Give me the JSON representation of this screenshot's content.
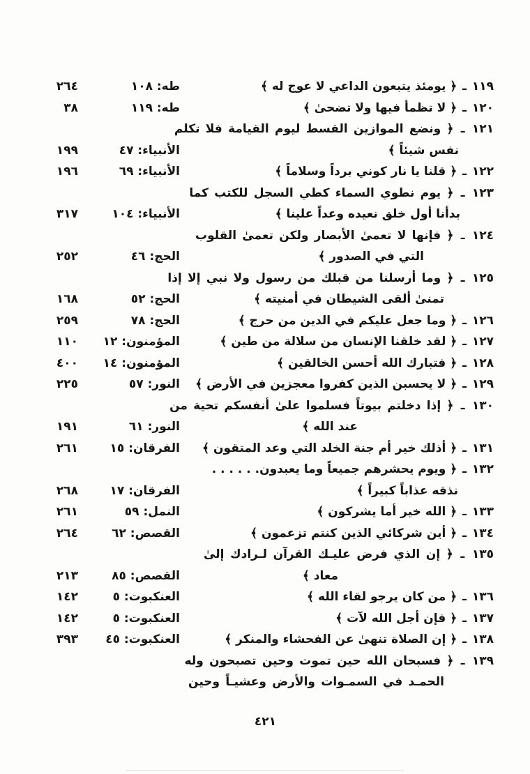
{
  "separator": "ـ",
  "footer": {
    "page_number": "٤٢١"
  },
  "entries": [
    {
      "num": "١١٩",
      "ref": "طه: ١٠٨",
      "page": "٢٦٤",
      "lines": [
        {
          "text": "﴿ يومئذ يتبعون الداعي لا عوج له ﴾"
        }
      ]
    },
    {
      "num": "١٢٠",
      "ref": "طه: ١١٩",
      "page": "٣٨",
      "lines": [
        {
          "text": "﴿ لا تظمأ فيها ولا تضحىٰ ﴾"
        }
      ]
    },
    {
      "num": "١٢١",
      "ref": "الأنبياء: ٤٧",
      "page": "١٩٩",
      "lines": [
        {
          "text": "﴿ ونضع الموازين القسط ليوم القيامة فلا تكلم",
          "jw": 416
        },
        {
          "text": "نفس شيئاً ﴾",
          "indent": 50
        }
      ]
    },
    {
      "num": "١٢٢",
      "ref": "الأنبياء: ٦٩",
      "page": "١٩٦",
      "lines": [
        {
          "text": "﴿ قلنا يا نار كوني برداً وسلاماً ﴾"
        }
      ]
    },
    {
      "num": "١٢٣",
      "ref": "الأنبياء: ١٠٤",
      "page": "٣١٧",
      "lines": [
        {
          "text": "﴿ يوم نطوي السماء كطي السجل للكتب كما",
          "jw": 416
        },
        {
          "text": "بدأنا أول خلق نعيده وعداً علينا ﴾",
          "indent": 48
        }
      ]
    },
    {
      "num": "١٢٤",
      "ref": "الحج: ٤٦",
      "page": "٢٥٢",
      "lines": [
        {
          "text": "﴿ فإنها لا تعمىٰ الأبصار ولكن تعمىٰ القلوب",
          "jw": 416
        },
        {
          "text": "التي في الصدور ﴾",
          "indent": 100
        }
      ]
    },
    {
      "num": "١٢٥",
      "ref": "الحج: ٥٢",
      "page": "١٦٨",
      "lines": [
        {
          "text": "﴿ وما أرسلنا من قبلك من رسول ولا نبي إلا إذا",
          "jw": 416
        },
        {
          "text": "تمنىٰ ألقى الشيطان في أمنيته ﴾",
          "indent": 71
        }
      ]
    },
    {
      "num": "١٢٦",
      "ref": "الحج: ٧٨",
      "page": "٢٥٩",
      "lines": [
        {
          "text": "﴿ وما جعل عليكم في الدين من حرج ﴾"
        }
      ]
    },
    {
      "num": "١٢٧",
      "ref": "المؤمنون: ١٢",
      "page": "١١٠",
      "lines": [
        {
          "text": "﴿ لقد خلقنا الإنسان من سلالة من طين ﴾"
        }
      ]
    },
    {
      "num": "١٢٨",
      "ref": "المؤمنون: ١٤",
      "page": "٤٠٠",
      "lines": [
        {
          "text": "﴿ فتبارك الله أحسن الخالقين ﴾"
        }
      ]
    },
    {
      "num": "١٢٩",
      "ref": "النور: ٥٧",
      "page": "٢٢٥",
      "lines": [
        {
          "text": "﴿ لا يحسبن الذين كفروا معجزين في الأرض ﴾"
        }
      ]
    },
    {
      "num": "١٣٠",
      "ref": "النور: ٦١",
      "page": "١٩١",
      "lines": [
        {
          "text": "﴿ إذا دخلتم بيوتاً فسلموا علىٰ أنفسكم تحية من",
          "jw": 416
        },
        {
          "text": "عند الله ﴾",
          "indent": 195
        }
      ]
    },
    {
      "num": "١٣١",
      "ref": "الفرقان: ١٥",
      "page": "٢٦١",
      "lines": [
        {
          "text": "﴿ أذلك خير أم جنة الخلد التي وعد المتقون ﴾"
        }
      ]
    },
    {
      "num": "١٣٢",
      "ref": "الفرقان: ١٧",
      "page": "٢٦٨",
      "lines": [
        {
          "text": "﴿ ويوم يحشرهم جميعاً وما يعبدون. . . . . ."
        },
        {
          "text": "نذقه عذاباً كبيراً ﴾",
          "indent": 51
        }
      ]
    },
    {
      "num": "١٣٣",
      "ref": "النمل: ٥٩",
      "page": "٢٦١",
      "lines": [
        {
          "text": "﴿ الله خير أما يشركون ﴾"
        }
      ]
    },
    {
      "num": "١٣٤",
      "ref": "القصص: ٦٢",
      "page": "٢٦٤",
      "lines": [
        {
          "text": "﴿ أين شركائي الذين كنتم تزعمون ﴾"
        }
      ]
    },
    {
      "num": "١٣٥",
      "ref": "القصص: ٨٥",
      "page": "٢١٣",
      "lines": [
        {
          "text": "﴿ إن الذي فرض عليـك القرآن لـرادك إلىٰ",
          "jw": 416
        },
        {
          "text": "معاد ﴾",
          "indent": 223
        }
      ]
    },
    {
      "num": "١٣٦",
      "ref": "العنكبوت: ٥",
      "page": "١٤٢",
      "lines": [
        {
          "text": "﴿ من كان يرجو لقاء الله ﴾"
        }
      ]
    },
    {
      "num": "١٣٧",
      "ref": "العنكبوت: ٥",
      "page": "١٤٢",
      "lines": [
        {
          "text": "﴿ فإن أجل الله لآت ﴾"
        }
      ]
    },
    {
      "num": "١٣٨",
      "ref": "العنكبوت: ٤٥",
      "page": "٣٩٣",
      "lines": [
        {
          "text": "﴿ إن الصلاة تنهىٰ عن الفحشاء والمنكر ﴾"
        }
      ]
    },
    {
      "num": "١٣٩",
      "lines": [
        {
          "text": "﴿ فسبحان الله حين تموت وحين تصبحون وله",
          "jw": 416
        },
        {
          "text": "الحمـد في السمـوات والأرض وعشيـاً وحين",
          "indent": 71,
          "jw": 317
        }
      ]
    }
  ]
}
